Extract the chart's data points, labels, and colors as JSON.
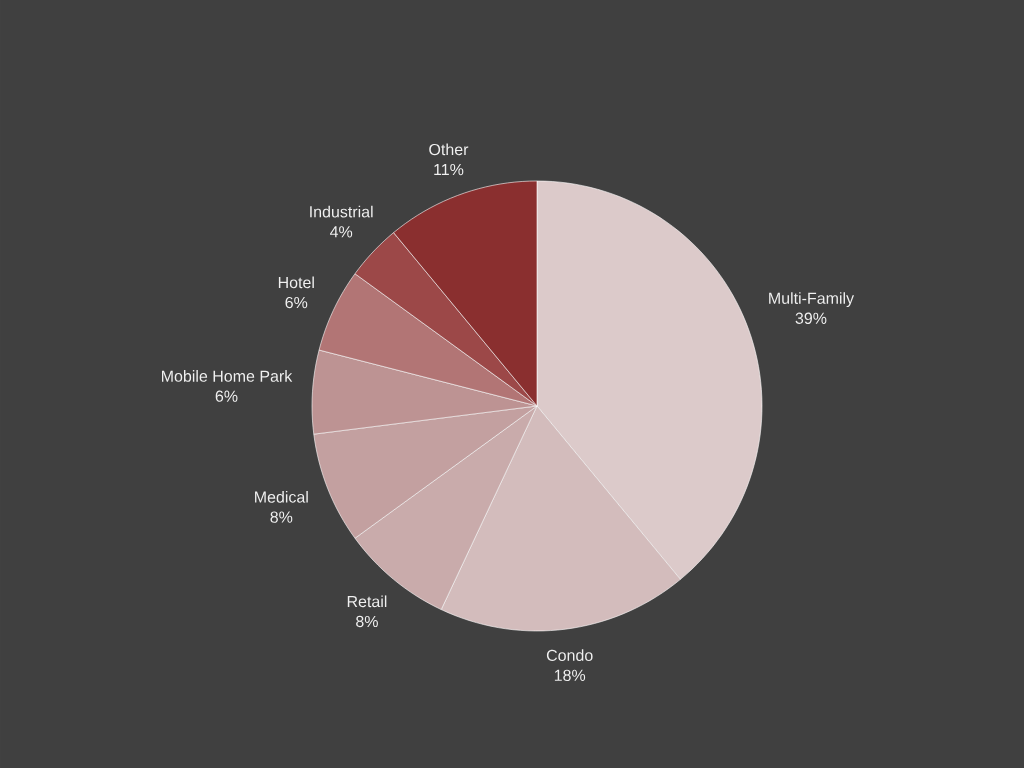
{
  "chart_data": {
    "type": "pie",
    "categories": [
      "Multi-Family",
      "Condo",
      "Retail",
      "Medical",
      "Mobile Home Park",
      "Hotel",
      "Industrial",
      "Other"
    ],
    "values": [
      39,
      18,
      8,
      8,
      6,
      6,
      4,
      11
    ],
    "value_labels": [
      "39%",
      "18%",
      "8%",
      "8%",
      "6%",
      "6%",
      "4%",
      "11%"
    ],
    "colors": [
      "#dccaca",
      "#d3bcbc",
      "#c9abab",
      "#c3a0a0",
      "#bd9393",
      "#b27575",
      "#9c4848",
      "#8a2f2f"
    ]
  }
}
